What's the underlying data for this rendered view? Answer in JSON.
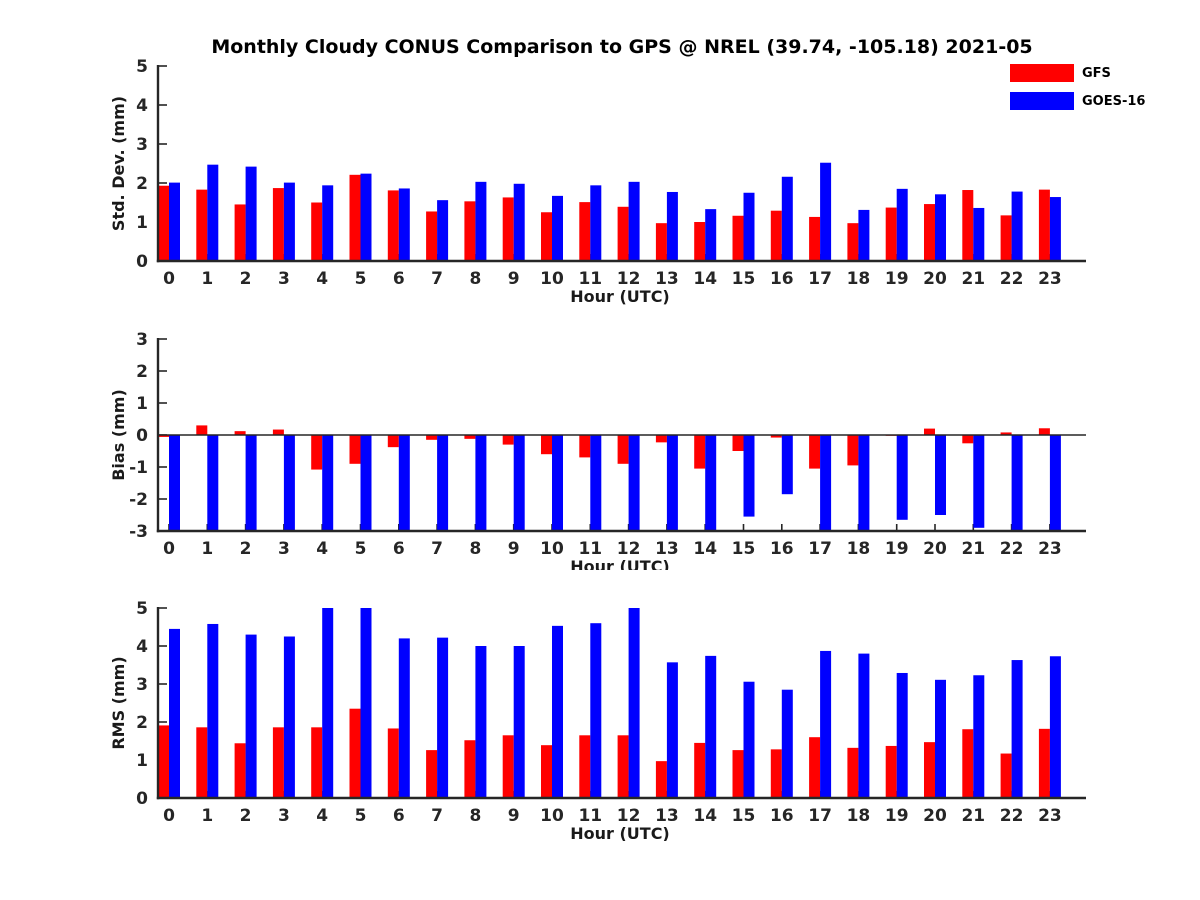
{
  "title": "Monthly Cloudy CONUS Comparison to GPS @ NREL (39.74, -105.18) 2021-05",
  "colors": {
    "gfs": "#ff0000",
    "goes16": "#0000ff",
    "axis": "#262626",
    "tick_label": "#262626",
    "label_text": "#1a1a1a"
  },
  "legend": [
    {
      "label": "GFS",
      "color_key": "gfs"
    },
    {
      "label": "GOES-16",
      "color_key": "goes16"
    }
  ],
  "chart_data": [
    {
      "type": "bar",
      "title": "",
      "xlabel": "Hour (UTC)",
      "ylabel": "Std. Dev. (mm)",
      "ylim": [
        0,
        5
      ],
      "yticks": [
        0,
        1,
        2,
        3,
        4,
        5
      ],
      "grid": false,
      "legend_position": "top-right-outside",
      "categories": [
        0,
        1,
        2,
        3,
        4,
        5,
        6,
        7,
        8,
        9,
        10,
        11,
        12,
        13,
        14,
        15,
        16,
        17,
        18,
        19,
        20,
        21,
        22,
        23
      ],
      "series": [
        {
          "name": "GFS",
          "values": [
            1.93,
            1.83,
            1.45,
            1.87,
            1.5,
            2.21,
            1.81,
            1.27,
            1.53,
            1.63,
            1.25,
            1.51,
            1.39,
            0.97,
            1.0,
            1.16,
            1.29,
            1.13,
            0.97,
            1.37,
            1.46,
            1.82,
            1.17,
            1.83
          ]
        },
        {
          "name": "GOES-16",
          "values": [
            2.01,
            2.47,
            2.42,
            2.01,
            1.94,
            2.24,
            1.86,
            1.56,
            2.03,
            1.98,
            1.67,
            1.94,
            2.03,
            1.77,
            1.33,
            1.75,
            2.16,
            2.52,
            1.31,
            1.85,
            1.71,
            1.36,
            1.78,
            1.64
          ]
        }
      ]
    },
    {
      "type": "bar",
      "title": "",
      "xlabel": "Hour (UTC)",
      "ylabel": "Bias (mm)",
      "ylim": [
        -3,
        3
      ],
      "yticks": [
        -3,
        -2,
        -1,
        0,
        1,
        2,
        3
      ],
      "grid": false,
      "categories": [
        0,
        1,
        2,
        3,
        4,
        5,
        6,
        7,
        8,
        9,
        10,
        11,
        12,
        13,
        14,
        15,
        16,
        17,
        18,
        19,
        20,
        21,
        22,
        23
      ],
      "series": [
        {
          "name": "GFS",
          "values": [
            -0.06,
            0.3,
            0.12,
            0.17,
            -1.08,
            -0.9,
            -0.38,
            -0.15,
            -0.12,
            -0.3,
            -0.6,
            -0.7,
            -0.9,
            -0.23,
            -1.05,
            -0.5,
            -0.08,
            -1.05,
            -0.95,
            -0.02,
            0.2,
            -0.26,
            0.08,
            0.21
          ]
        },
        {
          "name": "GOES-16",
          "clipped_to_ylim": true,
          "values": [
            -3.0,
            -3.0,
            -3.0,
            -3.0,
            -3.0,
            -3.0,
            -3.0,
            -3.0,
            -3.0,
            -3.0,
            -3.0,
            -3.0,
            -3.0,
            -3.0,
            -3.0,
            -2.55,
            -1.85,
            -3.0,
            -3.0,
            -2.65,
            -2.5,
            -2.9,
            -3.0,
            -3.0
          ]
        }
      ]
    },
    {
      "type": "bar",
      "title": "",
      "xlabel": "Hour (UTC)",
      "ylabel": "RMS (mm)",
      "ylim": [
        0,
        5
      ],
      "yticks": [
        0,
        1,
        2,
        3,
        4,
        5
      ],
      "grid": false,
      "categories": [
        0,
        1,
        2,
        3,
        4,
        5,
        6,
        7,
        8,
        9,
        10,
        11,
        12,
        13,
        14,
        15,
        16,
        17,
        18,
        19,
        20,
        21,
        22,
        23
      ],
      "series": [
        {
          "name": "GFS",
          "values": [
            1.91,
            1.86,
            1.44,
            1.86,
            1.86,
            2.35,
            1.83,
            1.26,
            1.52,
            1.65,
            1.39,
            1.65,
            1.65,
            0.97,
            1.45,
            1.26,
            1.28,
            1.6,
            1.32,
            1.37,
            1.47,
            1.81,
            1.17,
            1.82
          ]
        },
        {
          "name": "GOES-16",
          "values": [
            4.45,
            4.58,
            4.3,
            4.25,
            5.0,
            5.0,
            4.2,
            4.22,
            4.0,
            4.0,
            4.53,
            4.6,
            5.0,
            3.57,
            3.74,
            3.06,
            2.85,
            3.87,
            3.8,
            3.29,
            3.11,
            3.23,
            3.63,
            3.73
          ]
        }
      ]
    }
  ]
}
